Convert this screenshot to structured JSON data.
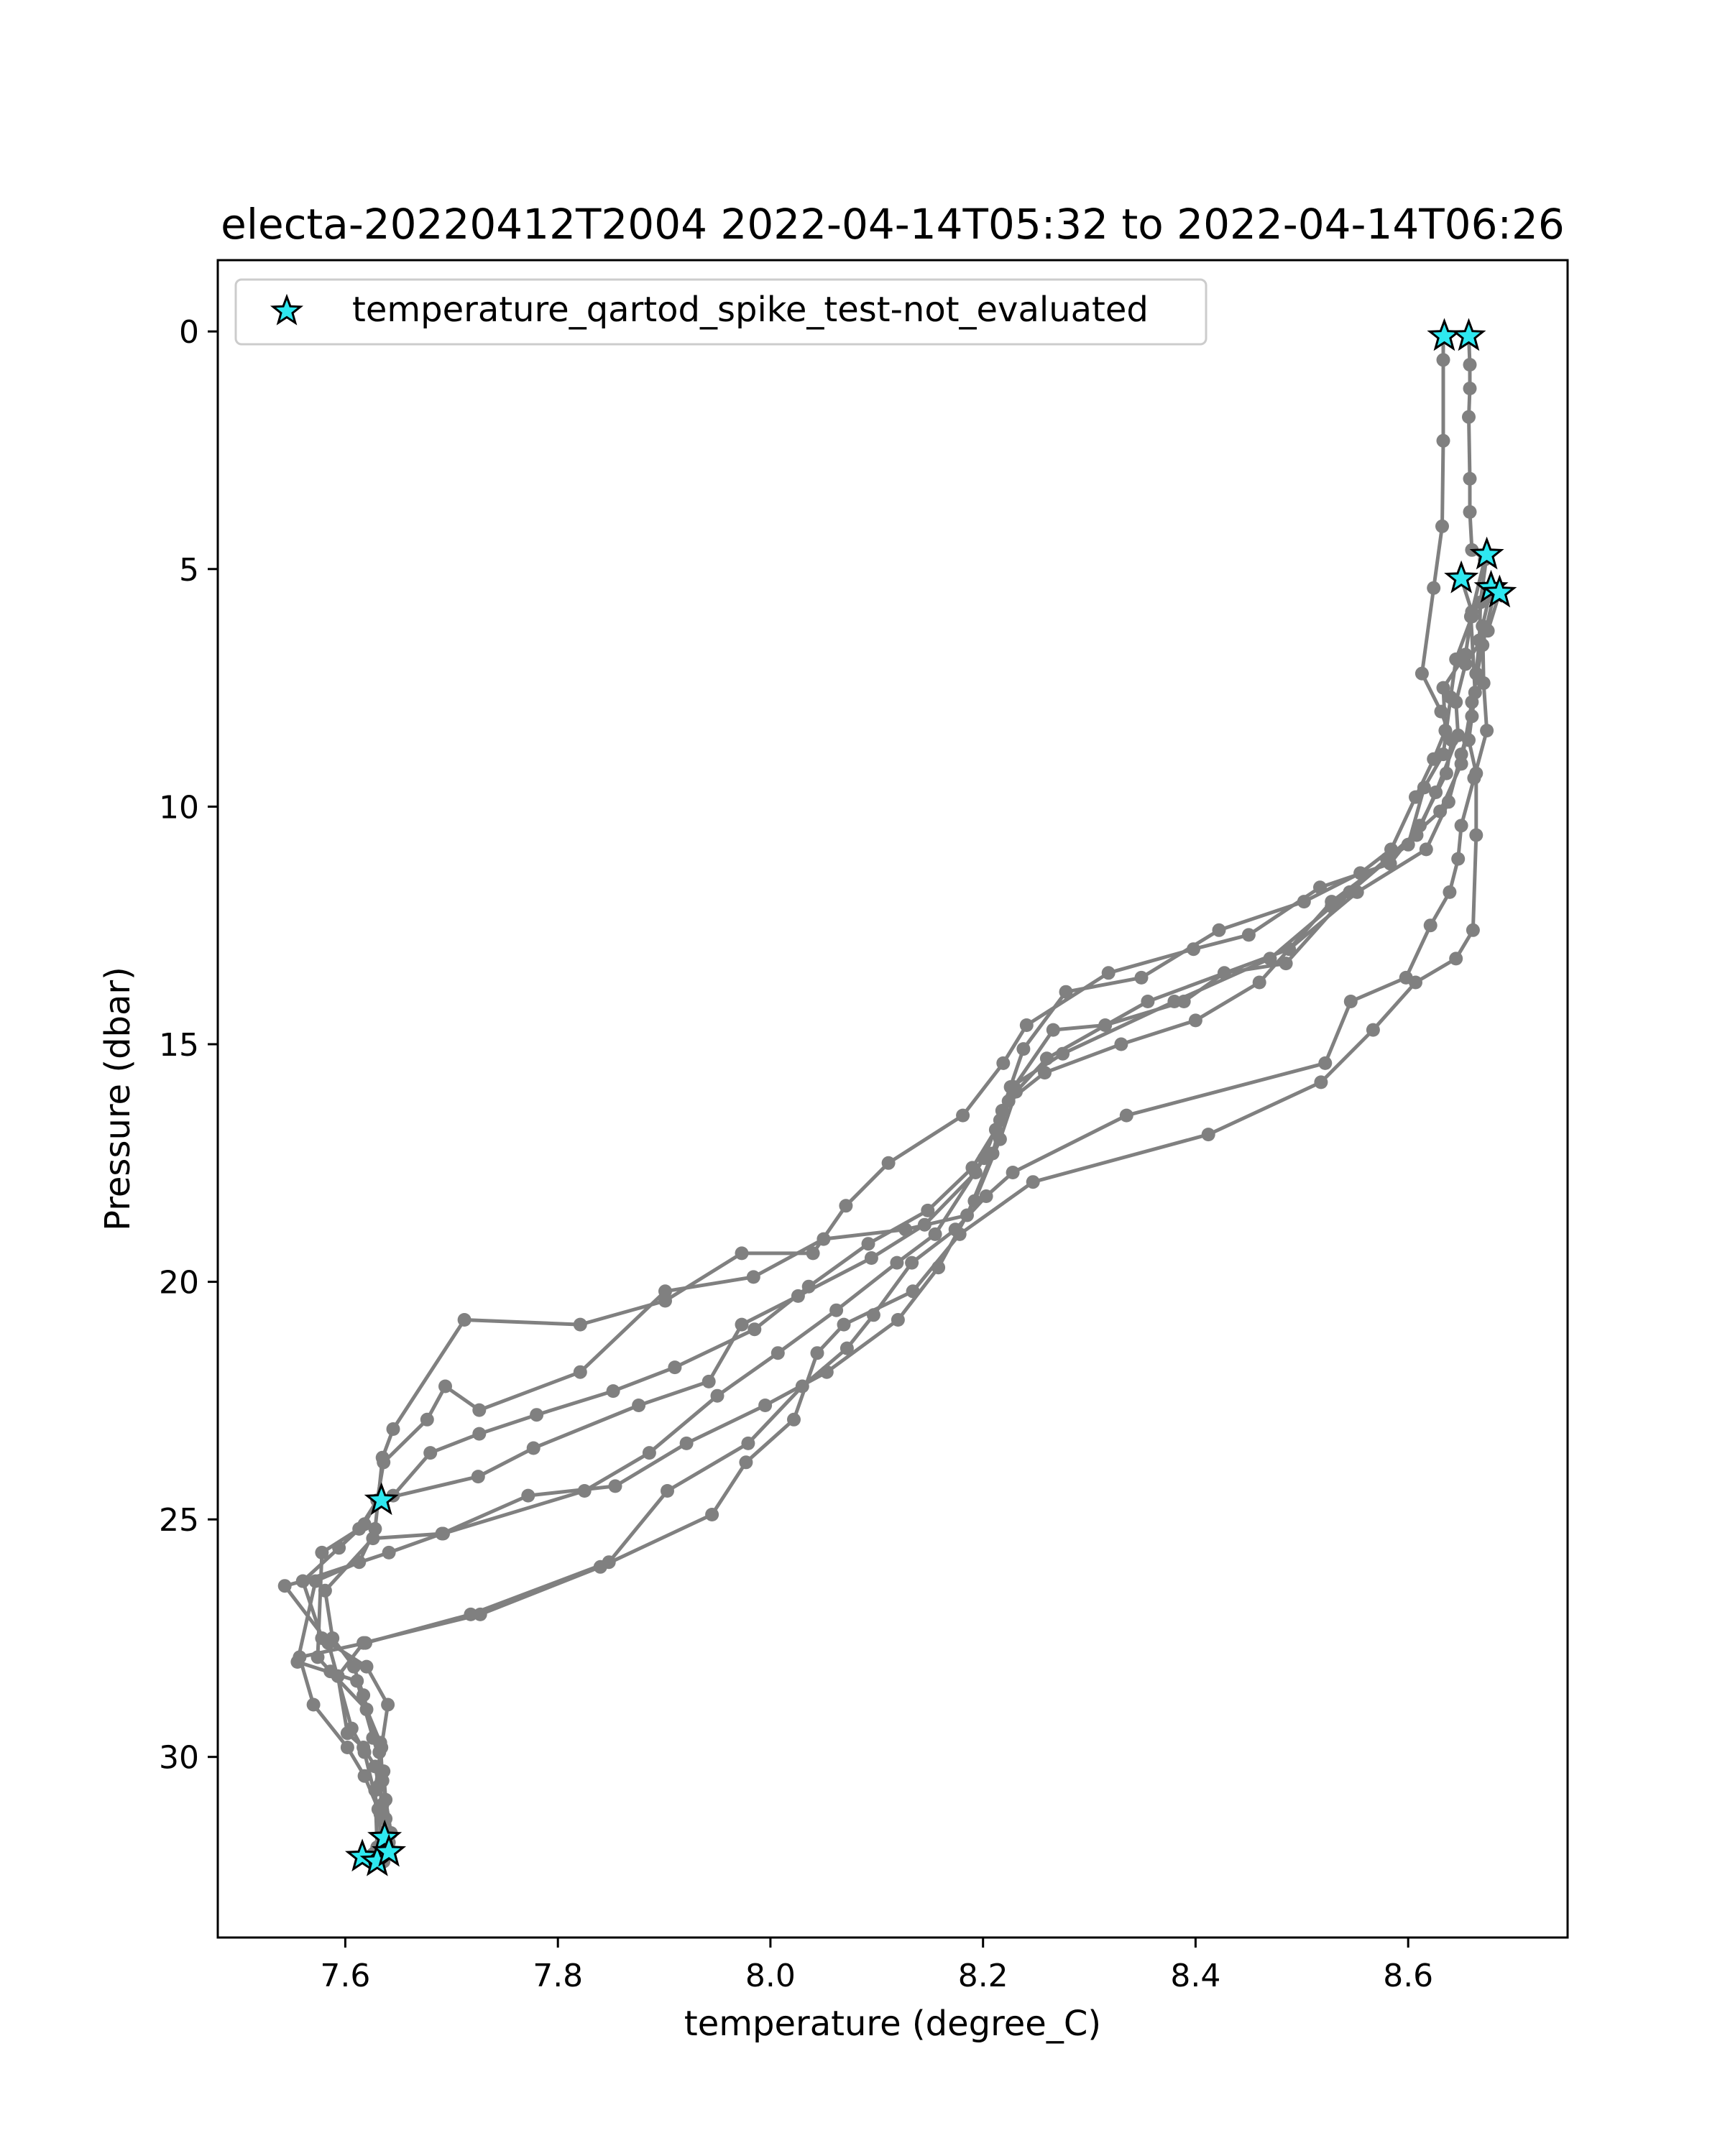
{
  "chart_data": {
    "type": "line",
    "title": "electa-20220412T2004 2022-04-14T05:32 to 2022-04-14T06:26",
    "xlabel": "temperature (degree_C)",
    "ylabel": "Pressure (dbar)",
    "xlim": [
      7.48,
      8.75
    ],
    "ylim": [
      33.8,
      -1.5
    ],
    "y_inverted": true,
    "grid": false,
    "legend_placement": "top-left",
    "xticks": [
      "7.6",
      "7.8",
      "8.0",
      "8.2",
      "8.4",
      "8.6"
    ],
    "yticks": [
      "0",
      "5",
      "10",
      "15",
      "20",
      "25",
      "30"
    ],
    "line_color": "#808080",
    "marker_color": "#808080",
    "flag_color": "#2ee8f0",
    "flag_edge_color": "#000000",
    "series": [
      {
        "values": [
          [
            8.633,
            0.1
          ],
          [
            8.633,
            0.6
          ],
          [
            8.633,
            2.3
          ],
          [
            8.632,
            4.1
          ],
          [
            8.624,
            5.4
          ],
          [
            8.613,
            7.2
          ],
          [
            8.631,
            8.0
          ],
          [
            8.641,
            8.6
          ],
          [
            8.636,
            9.3
          ],
          [
            8.611,
            10.4
          ],
          [
            8.583,
            11.2
          ],
          [
            8.517,
            11.7
          ],
          [
            8.45,
            12.7
          ],
          [
            8.398,
            13.0
          ],
          [
            8.318,
            13.5
          ],
          [
            8.241,
            14.6
          ],
          [
            8.219,
            15.4
          ],
          [
            8.181,
            16.5
          ],
          [
            8.111,
            17.5
          ],
          [
            8.071,
            18.4
          ],
          [
            8.04,
            19.4
          ],
          [
            7.973,
            19.4
          ],
          [
            7.901,
            20.4
          ],
          [
            7.821,
            20.9
          ],
          [
            7.712,
            20.8
          ],
          [
            7.645,
            23.1
          ],
          [
            7.635,
            23.7
          ],
          [
            7.628,
            25.2
          ],
          [
            7.613,
            25.9
          ],
          [
            7.572,
            26.3
          ],
          [
            7.555,
            28.0
          ],
          [
            7.611,
            28.4
          ],
          [
            7.626,
            29.6
          ],
          [
            7.636,
            30.3
          ],
          [
            7.638,
            30.9
          ],
          [
            7.637,
            31.7
          ],
          [
            7.616,
            32.1
          ]
        ]
      },
      {
        "values": [
          [
            8.657,
            0.1
          ],
          [
            8.658,
            0.7
          ],
          [
            8.658,
            1.2
          ],
          [
            8.657,
            1.8
          ],
          [
            8.658,
            3.1
          ],
          [
            8.658,
            3.8
          ],
          [
            8.66,
            4.6
          ],
          [
            8.672,
            4.8
          ],
          [
            8.659,
            6.0
          ],
          [
            8.663,
            7.6
          ],
          [
            8.657,
            8.6
          ],
          [
            8.664,
            9.3
          ],
          [
            8.664,
            10.6
          ],
          [
            8.661,
            12.6
          ],
          [
            8.645,
            13.2
          ],
          [
            8.607,
            13.7
          ],
          [
            8.567,
            14.7
          ],
          [
            8.518,
            15.8
          ],
          [
            8.412,
            16.9
          ],
          [
            8.247,
            17.9
          ],
          [
            8.178,
            19.0
          ],
          [
            8.134,
            20.2
          ],
          [
            8.069,
            20.9
          ],
          [
            8.044,
            21.5
          ],
          [
            8.022,
            22.9
          ],
          [
            7.977,
            23.8
          ],
          [
            7.945,
            24.9
          ],
          [
            7.84,
            26.0
          ],
          [
            7.727,
            27.0
          ],
          [
            7.617,
            27.6
          ],
          [
            7.593,
            28.3
          ],
          [
            7.602,
            29.5
          ],
          [
            7.617,
            29.8
          ],
          [
            7.628,
            30.2
          ],
          [
            7.635,
            31.0
          ],
          [
            7.641,
            31.8
          ],
          [
            7.636,
            32.0
          ]
        ]
      },
      {
        "values": [
          [
            8.65,
            5.2
          ],
          [
            8.66,
            5.9
          ],
          [
            8.654,
            6.8
          ],
          [
            8.633,
            7.5
          ],
          [
            8.635,
            8.4
          ],
          [
            8.624,
            9.0
          ],
          [
            8.607,
            9.8
          ],
          [
            8.584,
            10.9
          ],
          [
            8.555,
            11.4
          ],
          [
            8.502,
            12.0
          ],
          [
            8.422,
            12.6
          ],
          [
            8.349,
            13.6
          ],
          [
            8.278,
            13.9
          ],
          [
            8.238,
            15.1
          ],
          [
            8.218,
            16.4
          ],
          [
            8.201,
            17.4
          ],
          [
            8.155,
            19.0
          ],
          [
            8.119,
            19.6
          ],
          [
            8.062,
            20.6
          ],
          [
            8.007,
            21.5
          ],
          [
            7.95,
            22.4
          ],
          [
            7.886,
            23.6
          ],
          [
            7.825,
            24.4
          ],
          [
            7.692,
            25.3
          ],
          [
            7.626,
            25.4
          ],
          [
            7.581,
            26.5
          ],
          [
            7.588,
            27.5
          ],
          [
            7.608,
            28.1
          ],
          [
            7.617,
            28.7
          ],
          [
            7.632,
            29.9
          ],
          [
            7.632,
            30.6
          ],
          [
            7.638,
            31.3
          ],
          [
            7.636,
            32.1
          ]
        ]
      },
      {
        "values": [
          [
            8.674,
            4.7
          ],
          [
            8.668,
            5.7
          ],
          [
            8.667,
            6.5
          ],
          [
            8.664,
            7.2
          ],
          [
            8.66,
            8.1
          ],
          [
            8.65,
            8.9
          ],
          [
            8.638,
            9.9
          ],
          [
            8.617,
            10.9
          ],
          [
            8.552,
            11.8
          ],
          [
            8.488,
            13.0
          ],
          [
            8.355,
            14.1
          ],
          [
            8.26,
            15.3
          ],
          [
            8.231,
            16.0
          ],
          [
            8.216,
            17.0
          ],
          [
            8.192,
            18.3
          ],
          [
            8.158,
            19.7
          ],
          [
            8.12,
            20.8
          ],
          [
            8.053,
            21.9
          ],
          [
            7.995,
            22.6
          ],
          [
            7.921,
            23.4
          ],
          [
            7.854,
            24.3
          ],
          [
            7.772,
            24.5
          ],
          [
            7.691,
            25.3
          ],
          [
            7.641,
            25.7
          ],
          [
            7.56,
            26.3
          ],
          [
            7.543,
            26.4
          ],
          [
            7.584,
            27.6
          ],
          [
            7.606,
            29.4
          ],
          [
            7.618,
            29.9
          ],
          [
            7.631,
            31.1
          ],
          [
            7.634,
            31.8
          ],
          [
            7.63,
            32.1
          ]
        ]
      },
      {
        "values": [
          [
            8.678,
            5.4
          ],
          [
            8.67,
            6.2
          ],
          [
            8.671,
            7.4
          ],
          [
            8.674,
            8.4
          ],
          [
            8.662,
            9.4
          ],
          [
            8.65,
            10.4
          ],
          [
            8.647,
            11.1
          ],
          [
            8.639,
            11.8
          ],
          [
            8.621,
            12.5
          ],
          [
            8.598,
            13.6
          ],
          [
            8.546,
            14.1
          ],
          [
            8.522,
            15.4
          ],
          [
            8.335,
            16.5
          ],
          [
            8.228,
            17.7
          ],
          [
            8.203,
            18.2
          ],
          [
            8.174,
            18.9
          ],
          [
            8.133,
            19.6
          ],
          [
            8.097,
            20.7
          ],
          [
            8.072,
            21.4
          ],
          [
            8.03,
            22.2
          ],
          [
            7.979,
            23.4
          ],
          [
            7.903,
            24.4
          ],
          [
            7.848,
            25.9
          ],
          [
            7.718,
            27.0
          ],
          [
            7.619,
            27.6
          ],
          [
            7.557,
            27.9
          ],
          [
            7.57,
            28.9
          ],
          [
            7.602,
            29.8
          ],
          [
            7.618,
            30.4
          ],
          [
            7.633,
            31.2
          ],
          [
            7.633,
            32.2
          ]
        ]
      },
      {
        "values": [
          [
            8.686,
            5.5
          ],
          [
            8.675,
            6.3
          ],
          [
            8.654,
            7.0
          ],
          [
            8.645,
            7.8
          ],
          [
            8.647,
            8.5
          ],
          [
            8.626,
            9.7
          ],
          [
            8.608,
            10.6
          ],
          [
            8.545,
            11.8
          ],
          [
            8.485,
            13.3
          ],
          [
            8.427,
            13.5
          ],
          [
            8.389,
            14.1
          ],
          [
            8.315,
            14.6
          ],
          [
            8.266,
            14.7
          ],
          [
            8.229,
            15.9
          ],
          [
            8.216,
            16.6
          ],
          [
            8.193,
            17.7
          ],
          [
            8.145,
            18.8
          ],
          [
            8.095,
            19.5
          ],
          [
            8.026,
            20.3
          ],
          [
            7.973,
            20.9
          ],
          [
            7.942,
            22.1
          ],
          [
            7.876,
            22.6
          ],
          [
            7.777,
            23.5
          ],
          [
            7.725,
            24.1
          ],
          [
            7.63,
            24.6
          ],
          [
            7.613,
            25.2
          ],
          [
            7.578,
            25.7
          ],
          [
            7.574,
            27.9
          ],
          [
            7.586,
            28.2
          ],
          [
            7.62,
            29.0
          ],
          [
            7.633,
            29.7
          ],
          [
            7.635,
            30.5
          ],
          [
            7.643,
            31.6
          ],
          [
            7.636,
            32.2
          ]
        ]
      },
      {
        "values": [
          [
            8.68,
            5.6
          ],
          [
            8.67,
            6.6
          ],
          [
            8.66,
            7.8
          ],
          [
            8.65,
            9.1
          ],
          [
            8.63,
            10.1
          ],
          [
            8.58,
            11.1
          ],
          [
            8.528,
            12.1
          ],
          [
            8.47,
            13.2
          ],
          [
            8.38,
            14.1
          ],
          [
            8.275,
            15.2
          ],
          [
            8.226,
            15.9
          ],
          [
            8.209,
            17.3
          ],
          [
            8.185,
            18.6
          ],
          [
            8.127,
            18.9
          ],
          [
            8.05,
            19.1
          ],
          [
            7.984,
            19.9
          ],
          [
            7.901,
            20.2
          ],
          [
            7.821,
            21.9
          ],
          [
            7.726,
            22.7
          ],
          [
            7.694,
            22.2
          ],
          [
            7.677,
            22.9
          ],
          [
            7.636,
            23.8
          ],
          [
            7.63,
            24.6
          ],
          [
            7.618,
            25.1
          ],
          [
            7.594,
            25.6
          ],
          [
            7.56,
            26.3
          ],
          [
            7.578,
            27.5
          ],
          [
            7.62,
            28.1
          ],
          [
            7.64,
            28.9
          ],
          [
            7.634,
            29.8
          ],
          [
            7.628,
            30.7
          ],
          [
            7.63,
            31.9
          ]
        ]
      },
      {
        "values": [
          [
            8.66,
            6.0
          ],
          [
            8.645,
            6.9
          ],
          [
            8.64,
            7.7
          ],
          [
            8.633,
            8.9
          ],
          [
            8.615,
            9.6
          ],
          [
            8.6,
            10.8
          ],
          [
            8.528,
            12.0
          ],
          [
            8.46,
            13.7
          ],
          [
            8.4,
            14.5
          ],
          [
            8.33,
            15.0
          ],
          [
            8.258,
            15.6
          ],
          [
            8.224,
            16.2
          ],
          [
            8.212,
            16.8
          ],
          [
            8.19,
            17.6
          ],
          [
            8.148,
            18.5
          ],
          [
            8.092,
            19.2
          ],
          [
            8.036,
            20.1
          ],
          [
            7.985,
            21.0
          ],
          [
            7.91,
            21.8
          ],
          [
            7.852,
            22.3
          ],
          [
            7.78,
            22.8
          ],
          [
            7.726,
            23.2
          ],
          [
            7.68,
            23.6
          ],
          [
            7.645,
            24.5
          ]
        ]
      }
    ],
    "flagged_points": {
      "label": "temperature_qartod_spike_test-not_evaluated",
      "values": [
        [
          8.634,
          0.1
        ],
        [
          8.657,
          0.1
        ],
        [
          8.674,
          4.7
        ],
        [
          8.65,
          5.2
        ],
        [
          8.678,
          5.4
        ],
        [
          8.686,
          5.5
        ],
        [
          7.634,
          24.6
        ],
        [
          7.637,
          31.7
        ],
        [
          7.616,
          32.1
        ],
        [
          7.63,
          32.2
        ],
        [
          7.641,
          32.0
        ]
      ]
    }
  }
}
